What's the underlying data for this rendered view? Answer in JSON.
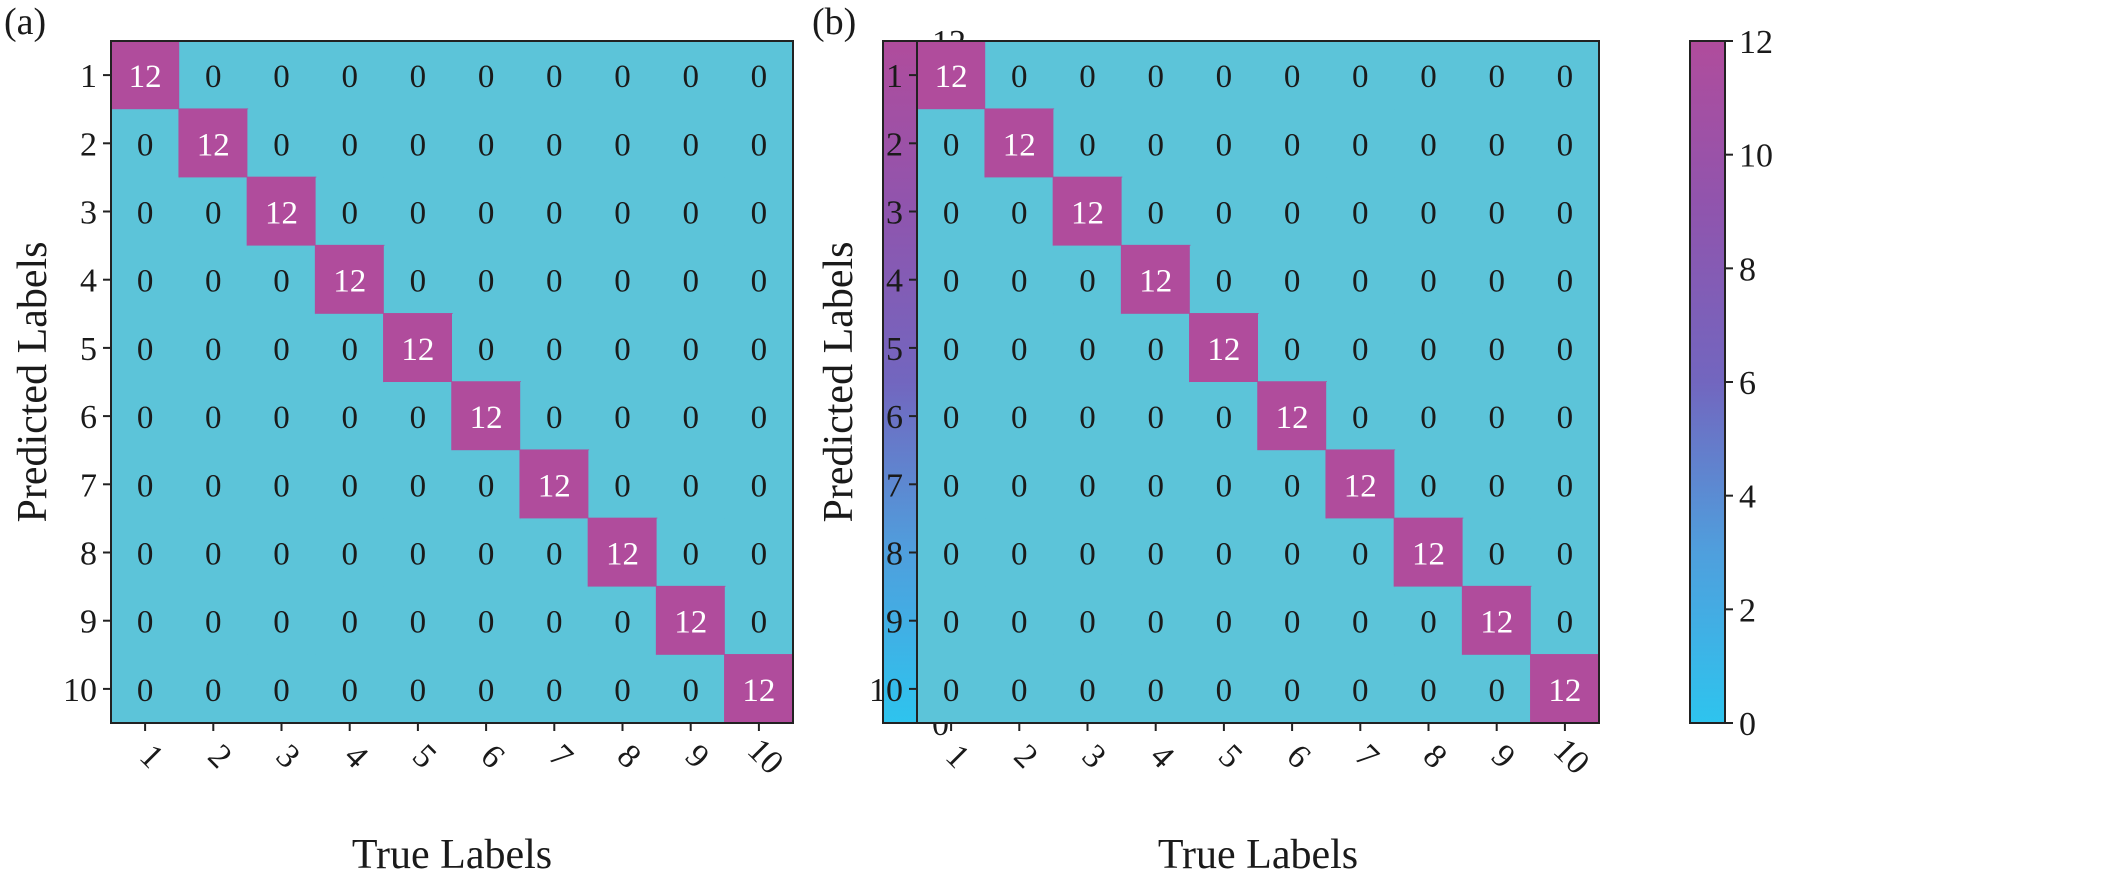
{
  "colors": {
    "low": "#4fc3dd",
    "low_cell": "#5cc4d9",
    "high": "#b04c9c",
    "cmap": [
      "#2ec4ee",
      "#4f9fdd",
      "#7266bf",
      "#8f55ae",
      "#b04c9c"
    ],
    "cell_border": "#b04c9c",
    "frame": "#222222"
  },
  "chart_data": [
    {
      "type": "heatmap",
      "panel_label": "(a)",
      "xlabel": "True Labels",
      "ylabel": "Predicted Labels",
      "x_categories": [
        "1",
        "2",
        "3",
        "4",
        "5",
        "6",
        "7",
        "8",
        "9",
        "10"
      ],
      "y_categories": [
        "1",
        "2",
        "3",
        "4",
        "5",
        "6",
        "7",
        "8",
        "9",
        "10"
      ],
      "values": [
        [
          12,
          0,
          0,
          0,
          0,
          0,
          0,
          0,
          0,
          0
        ],
        [
          0,
          12,
          0,
          0,
          0,
          0,
          0,
          0,
          0,
          0
        ],
        [
          0,
          0,
          12,
          0,
          0,
          0,
          0,
          0,
          0,
          0
        ],
        [
          0,
          0,
          0,
          12,
          0,
          0,
          0,
          0,
          0,
          0
        ],
        [
          0,
          0,
          0,
          0,
          12,
          0,
          0,
          0,
          0,
          0
        ],
        [
          0,
          0,
          0,
          0,
          0,
          12,
          0,
          0,
          0,
          0
        ],
        [
          0,
          0,
          0,
          0,
          0,
          0,
          12,
          0,
          0,
          0
        ],
        [
          0,
          0,
          0,
          0,
          0,
          0,
          0,
          12,
          0,
          0
        ],
        [
          0,
          0,
          0,
          0,
          0,
          0,
          0,
          0,
          12,
          0
        ],
        [
          0,
          0,
          0,
          0,
          0,
          0,
          0,
          0,
          0,
          12
        ]
      ],
      "colorbar": {
        "min": 0,
        "max": 12,
        "ticks": [
          "0",
          "2",
          "4",
          "6",
          "8",
          "10",
          "12"
        ]
      }
    },
    {
      "type": "heatmap",
      "panel_label": "(b)",
      "xlabel": "True Labels",
      "ylabel": "Predicted Labels",
      "x_categories": [
        "1",
        "2",
        "3",
        "4",
        "5",
        "6",
        "7",
        "8",
        "9",
        "10"
      ],
      "y_categories": [
        "1",
        "2",
        "3",
        "4",
        "5",
        "6",
        "7",
        "8",
        "9",
        "10"
      ],
      "values": [
        [
          12,
          0,
          0,
          0,
          0,
          0,
          0,
          0,
          0,
          0
        ],
        [
          0,
          12,
          0,
          0,
          0,
          0,
          0,
          0,
          0,
          0
        ],
        [
          0,
          0,
          12,
          0,
          0,
          0,
          0,
          0,
          0,
          0
        ],
        [
          0,
          0,
          0,
          12,
          0,
          0,
          0,
          0,
          0,
          0
        ],
        [
          0,
          0,
          0,
          0,
          12,
          0,
          0,
          0,
          0,
          0
        ],
        [
          0,
          0,
          0,
          0,
          0,
          12,
          0,
          0,
          0,
          0
        ],
        [
          0,
          0,
          0,
          0,
          0,
          0,
          12,
          0,
          0,
          0
        ],
        [
          0,
          0,
          0,
          0,
          0,
          0,
          0,
          12,
          0,
          0
        ],
        [
          0,
          0,
          0,
          0,
          0,
          0,
          0,
          0,
          12,
          0
        ],
        [
          0,
          0,
          0,
          0,
          0,
          0,
          0,
          0,
          0,
          12
        ]
      ],
      "colorbar": {
        "min": 0,
        "max": 12,
        "ticks": [
          "0",
          "2",
          "4",
          "6",
          "8",
          "10",
          "12"
        ]
      }
    }
  ]
}
